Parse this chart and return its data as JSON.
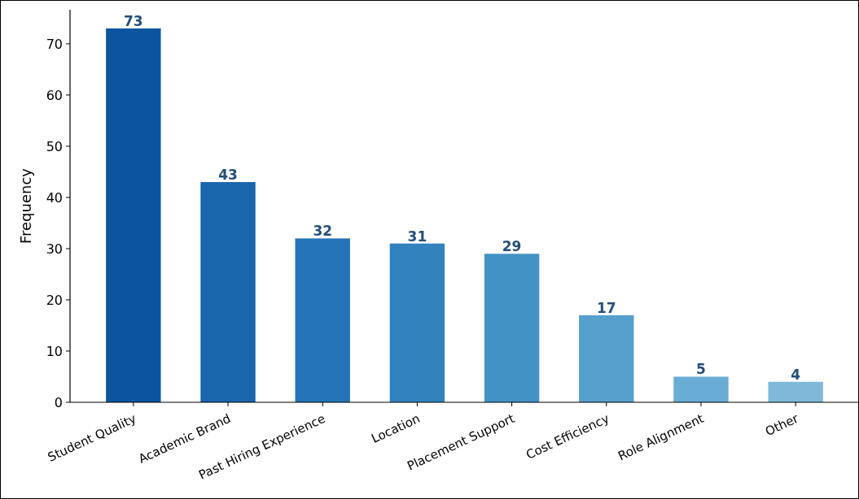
{
  "chart_data": {
    "type": "bar",
    "ylabel": "Frequency",
    "categories": [
      "Student Quality",
      "Academic Brand",
      "Past Hiring Experience",
      "Location",
      "Placement Support",
      "Cost Efficiency",
      "Role Alignment",
      "Other"
    ],
    "values": [
      73,
      43,
      32,
      31,
      29,
      17,
      5,
      4
    ],
    "colors": [
      "#0b559f",
      "#1966ad",
      "#2474b7",
      "#3282be",
      "#4392c6",
      "#56a0ce",
      "#69add5",
      "#7fb9da"
    ],
    "ylim": [
      0,
      76.65
    ],
    "yticks": [
      0,
      10,
      20,
      30,
      40,
      50,
      60,
      70
    ],
    "data_labels": true
  }
}
